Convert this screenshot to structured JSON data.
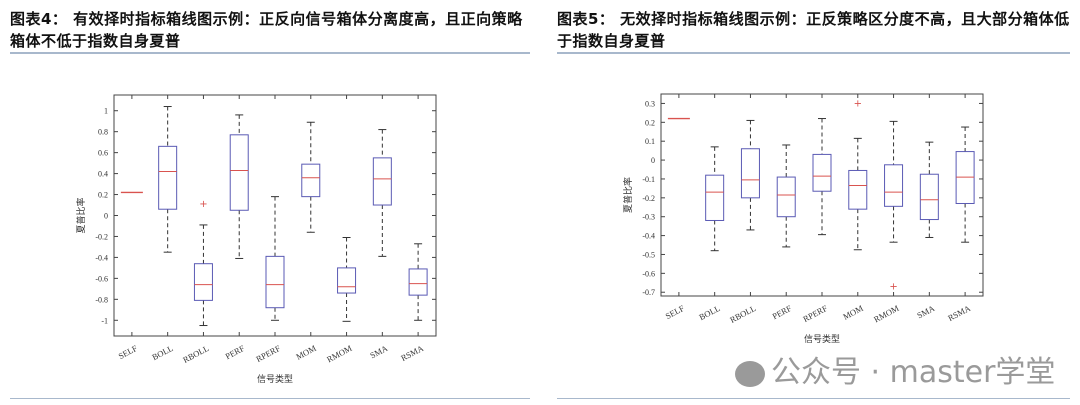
{
  "panels": [
    {
      "title": "图表4： 有效择时指标箱线图示例：正反向信号箱体分离度高，且正向策略箱体不低于指数自身夏普"
    },
    {
      "title": "图表5： 无效择时指标箱线图示例：正反策略区分度不高，且大部分箱体低于指数自身夏普"
    }
  ],
  "watermark": {
    "text": "公众号 · master学堂"
  },
  "chart_data": [
    {
      "type": "box",
      "xlabel": "信号类型",
      "ylabel": "夏普比率",
      "ylim": [
        -1.15,
        1.15
      ],
      "yticks": [
        -1,
        -0.8,
        -0.6,
        -0.4,
        -0.2,
        0,
        0.2,
        0.4,
        0.6,
        0.8,
        1
      ],
      "ytick_labels": [
        "-1",
        "-0.8",
        "-0.6",
        "-0.4",
        "-0.2",
        "0",
        "0.2",
        "0.4",
        "0.6",
        "0.8",
        "1"
      ],
      "categories": [
        "SELF",
        "BOLL",
        "RBOLL",
        "PERF",
        "RPERF",
        "MOM",
        "RMOM",
        "SMA",
        "RSMA"
      ],
      "boxes": [
        {
          "min": 0.22,
          "q1": 0.22,
          "median": 0.22,
          "q3": 0.22,
          "max": 0.22,
          "outliers": []
        },
        {
          "min": -0.35,
          "q1": 0.06,
          "median": 0.42,
          "q3": 0.66,
          "max": 1.04,
          "outliers": []
        },
        {
          "min": -1.05,
          "q1": -0.81,
          "median": -0.66,
          "q3": -0.46,
          "max": -0.09,
          "outliers": [
            0.11
          ]
        },
        {
          "min": -0.41,
          "q1": 0.05,
          "median": 0.43,
          "q3": 0.77,
          "max": 0.96,
          "outliers": []
        },
        {
          "min": -1.0,
          "q1": -0.88,
          "median": -0.66,
          "q3": -0.39,
          "max": 0.18,
          "outliers": []
        },
        {
          "min": -0.16,
          "q1": 0.18,
          "median": 0.36,
          "q3": 0.49,
          "max": 0.89,
          "outliers": []
        },
        {
          "min": -1.01,
          "q1": -0.74,
          "median": -0.68,
          "q3": -0.5,
          "max": -0.21,
          "outliers": []
        },
        {
          "min": -0.39,
          "q1": 0.1,
          "median": 0.35,
          "q3": 0.55,
          "max": 0.82,
          "outliers": []
        },
        {
          "min": -1.0,
          "q1": -0.76,
          "median": -0.65,
          "q3": -0.51,
          "max": -0.27,
          "outliers": []
        }
      ],
      "colors": {
        "box": "#5a5ab4",
        "median": "#d9534f",
        "whisker": "#333333",
        "outlier": "#d9534f"
      }
    },
    {
      "type": "box",
      "xlabel": "信号类型",
      "ylabel": "夏普比率",
      "ylim": [
        -0.72,
        0.35
      ],
      "yticks": [
        -0.7,
        -0.6,
        -0.5,
        -0.4,
        -0.3,
        -0.2,
        -0.1,
        0,
        0.1,
        0.2,
        0.3
      ],
      "ytick_labels": [
        "-0.7",
        "-0.6",
        "-0.5",
        "-0.4",
        "-0.3",
        "-0.2",
        "-0.1",
        "0",
        "0.1",
        "0.2",
        "0.3"
      ],
      "categories": [
        "SELF",
        "BOLL",
        "RBOLL",
        "PERF",
        "RPERF",
        "MOM",
        "RMOM",
        "SMA",
        "RSMA"
      ],
      "boxes": [
        {
          "min": 0.22,
          "q1": 0.22,
          "median": 0.22,
          "q3": 0.22,
          "max": 0.22,
          "outliers": []
        },
        {
          "min": -0.48,
          "q1": -0.32,
          "median": -0.17,
          "q3": -0.08,
          "max": 0.07,
          "outliers": []
        },
        {
          "min": -0.37,
          "q1": -0.2,
          "median": -0.105,
          "q3": 0.06,
          "max": 0.21,
          "outliers": []
        },
        {
          "min": -0.46,
          "q1": -0.3,
          "median": -0.185,
          "q3": -0.09,
          "max": 0.08,
          "outliers": []
        },
        {
          "min": -0.395,
          "q1": -0.165,
          "median": -0.085,
          "q3": 0.03,
          "max": 0.22,
          "outliers": []
        },
        {
          "min": -0.475,
          "q1": -0.26,
          "median": -0.135,
          "q3": -0.055,
          "max": 0.115,
          "outliers": [
            0.3
          ]
        },
        {
          "min": -0.435,
          "q1": -0.245,
          "median": -0.17,
          "q3": -0.025,
          "max": 0.205,
          "outliers": [
            -0.67
          ]
        },
        {
          "min": -0.41,
          "q1": -0.315,
          "median": -0.21,
          "q3": -0.075,
          "max": 0.095,
          "outliers": []
        },
        {
          "min": -0.435,
          "q1": -0.23,
          "median": -0.09,
          "q3": 0.045,
          "max": 0.175,
          "outliers": []
        }
      ],
      "colors": {
        "box": "#5a5ab4",
        "median": "#d9534f",
        "whisker": "#333333",
        "outlier": "#d9534f"
      }
    }
  ]
}
